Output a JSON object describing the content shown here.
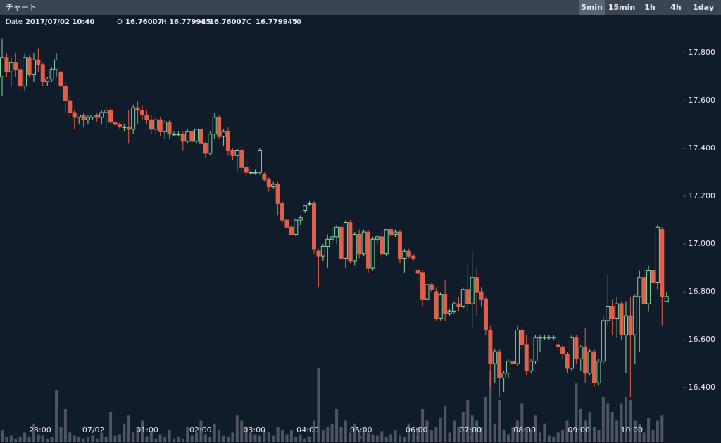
{
  "header": {
    "title": "チャート",
    "intervals": [
      "5min",
      "15min",
      "1h",
      "4h",
      "1day"
    ],
    "active": 0
  },
  "info": [
    {
      "label": "Date",
      "value": "2017/07/02 10:40"
    },
    {
      "label": "O",
      "value": "16.76007"
    },
    {
      "label": "H",
      "value": "16.779945"
    },
    {
      "label": "L",
      "value": "16.76007"
    },
    {
      "label": "C",
      "value": "16.779945"
    },
    {
      "label": "V",
      "value": "0"
    }
  ],
  "chart_data": {
    "type": "candlestick",
    "up_color": "#86d3a2",
    "down_color": "#e0604a",
    "volume_color": "#4e5560",
    "grid": false,
    "ylim": [
      16.174,
      17.956
    ],
    "yticks": [
      {
        "value": 16.4,
        "label": "16.400"
      },
      {
        "value": 16.6,
        "label": "16.600"
      },
      {
        "value": 16.8,
        "label": "16.800"
      },
      {
        "value": 17.0,
        "label": "17.000"
      },
      {
        "value": 17.2,
        "label": "17.200"
      },
      {
        "value": 17.4,
        "label": "17.400"
      },
      {
        "value": 17.6,
        "label": "17.600"
      },
      {
        "value": 17.8,
        "label": "17.800"
      }
    ],
    "xticks": [
      {
        "value": 8.4,
        "label": "23:00"
      },
      {
        "value": 20.2,
        "label": "07/02"
      },
      {
        "value": 32.1,
        "label": "01:00"
      },
      {
        "value": 43.9,
        "label": "02:00"
      },
      {
        "value": 55.8,
        "label": "03:00"
      },
      {
        "value": 67.6,
        "label": "04:00"
      },
      {
        "value": 79.4,
        "label": "05:00"
      },
      {
        "value": 91.7,
        "label": "06:00"
      },
      {
        "value": 103.6,
        "label": "07:00"
      },
      {
        "value": 115.6,
        "label": "08:00"
      },
      {
        "value": 127.6,
        "label": "09:00"
      },
      {
        "value": 139.3,
        "label": "10:00"
      }
    ],
    "candles": [
      [
        17.7,
        17.86,
        17.62,
        17.78,
        8
      ],
      [
        17.78,
        17.8,
        17.7,
        17.72,
        3
      ],
      [
        17.72,
        17.78,
        17.66,
        17.76,
        4
      ],
      [
        17.76,
        17.8,
        17.7,
        17.73,
        2
      ],
      [
        17.73,
        17.78,
        17.64,
        17.66,
        3
      ],
      [
        17.66,
        17.8,
        17.64,
        17.78,
        6
      ],
      [
        17.78,
        17.79,
        17.7,
        17.71,
        3
      ],
      [
        17.71,
        17.8,
        17.68,
        17.77,
        12
      ],
      [
        17.77,
        17.82,
        17.72,
        17.75,
        5
      ],
      [
        17.75,
        17.76,
        17.66,
        17.68,
        4
      ],
      [
        17.68,
        17.7,
        17.66,
        17.69,
        2
      ],
      [
        17.69,
        17.74,
        17.68,
        17.73,
        3
      ],
      [
        17.73,
        17.8,
        17.7,
        17.77,
        35
      ],
      [
        17.72,
        17.75,
        17.6,
        17.66,
        10
      ],
      [
        17.66,
        17.68,
        17.55,
        17.6,
        22
      ],
      [
        17.6,
        17.62,
        17.53,
        17.55,
        6
      ],
      [
        17.55,
        17.56,
        17.48,
        17.53,
        4
      ],
      [
        17.53,
        17.54,
        17.5,
        17.54,
        3
      ],
      [
        17.54,
        17.55,
        17.49,
        17.52,
        2
      ],
      [
        17.52,
        17.54,
        17.5,
        17.53,
        3
      ],
      [
        17.53,
        17.54,
        17.52,
        17.54,
        4
      ],
      [
        17.54,
        17.55,
        17.51,
        17.53,
        2
      ],
      [
        17.53,
        17.56,
        17.5,
        17.55,
        6
      ],
      [
        17.55,
        17.57,
        17.48,
        17.56,
        3
      ],
      [
        17.56,
        17.57,
        17.5,
        17.51,
        20
      ],
      [
        17.51,
        17.54,
        17.49,
        17.5,
        4
      ],
      [
        17.5,
        17.51,
        17.48,
        17.49,
        5
      ],
      [
        17.49,
        17.5,
        17.47,
        17.49,
        12
      ],
      [
        17.49,
        17.56,
        17.42,
        17.48,
        18
      ],
      [
        17.48,
        17.58,
        17.46,
        17.57,
        6
      ],
      [
        17.57,
        17.6,
        17.5,
        17.56,
        10
      ],
      [
        17.56,
        17.58,
        17.52,
        17.54,
        14
      ],
      [
        17.54,
        17.56,
        17.5,
        17.52,
        3
      ],
      [
        17.52,
        17.54,
        17.46,
        17.48,
        7
      ],
      [
        17.48,
        17.53,
        17.46,
        17.52,
        2
      ],
      [
        17.52,
        17.53,
        17.45,
        17.47,
        5
      ],
      [
        17.47,
        17.52,
        17.44,
        17.51,
        3
      ],
      [
        17.51,
        17.52,
        17.44,
        17.46,
        8
      ],
      [
        17.46,
        17.47,
        17.45,
        17.46,
        2
      ],
      [
        17.46,
        17.47,
        17.45,
        17.46,
        3
      ],
      [
        17.46,
        17.47,
        17.39,
        17.43,
        2
      ],
      [
        17.43,
        17.48,
        17.42,
        17.47,
        10
      ],
      [
        17.47,
        17.48,
        17.42,
        17.43,
        4
      ],
      [
        17.43,
        17.48,
        17.42,
        17.48,
        6
      ],
      [
        17.48,
        17.49,
        17.4,
        17.42,
        14
      ],
      [
        17.42,
        17.43,
        17.36,
        17.38,
        5
      ],
      [
        17.38,
        17.47,
        17.37,
        17.46,
        3
      ],
      [
        17.46,
        17.55,
        17.44,
        17.53,
        12
      ],
      [
        17.53,
        17.54,
        17.44,
        17.45,
        8
      ],
      [
        17.45,
        17.48,
        17.41,
        17.47,
        4
      ],
      [
        17.47,
        17.49,
        17.37,
        17.39,
        3
      ],
      [
        17.39,
        17.4,
        17.35,
        17.37,
        6
      ],
      [
        17.37,
        17.4,
        17.3,
        17.39,
        18
      ],
      [
        17.39,
        17.41,
        17.3,
        17.32,
        14
      ],
      [
        17.32,
        17.36,
        17.28,
        17.3,
        10
      ],
      [
        17.3,
        17.31,
        17.29,
        17.3,
        6
      ],
      [
        17.3,
        17.31,
        17.29,
        17.3,
        5
      ],
      [
        17.3,
        17.4,
        17.29,
        17.39,
        4
      ],
      [
        17.29,
        17.3,
        17.26,
        17.27,
        8
      ],
      [
        17.27,
        17.28,
        17.22,
        17.24,
        6
      ],
      [
        17.24,
        17.26,
        17.23,
        17.25,
        4
      ],
      [
        17.25,
        17.26,
        17.12,
        17.17,
        10
      ],
      [
        17.17,
        17.18,
        17.09,
        17.1,
        8
      ],
      [
        17.1,
        17.11,
        17.05,
        17.07,
        5
      ],
      [
        17.07,
        17.08,
        17.04,
        17.04,
        8
      ],
      [
        17.04,
        17.11,
        17.03,
        17.1,
        3
      ],
      [
        17.1,
        17.12,
        17.08,
        17.11,
        5
      ],
      [
        17.14,
        17.16,
        17.13,
        17.16,
        2
      ],
      [
        17.17,
        17.18,
        17.16,
        17.17,
        3
      ],
      [
        17.17,
        17.18,
        16.96,
        16.98,
        14
      ],
      [
        16.97,
        16.98,
        16.82,
        16.95,
        50
      ],
      [
        16.95,
        17.0,
        16.93,
        16.99,
        8
      ],
      [
        16.99,
        17.04,
        16.9,
        17.02,
        10
      ],
      [
        17.02,
        17.07,
        17.0,
        17.03,
        12
      ],
      [
        17.03,
        17.08,
        17.0,
        17.07,
        22
      ],
      [
        17.07,
        17.08,
        16.92,
        16.94,
        10
      ],
      [
        16.94,
        17.1,
        16.9,
        17.09,
        14
      ],
      [
        17.09,
        17.1,
        16.92,
        16.93,
        6
      ],
      [
        16.93,
        17.05,
        16.91,
        17.04,
        12
      ],
      [
        17.04,
        17.06,
        16.94,
        16.96,
        8
      ],
      [
        16.96,
        17.06,
        16.95,
        17.05,
        10
      ],
      [
        17.05,
        17.06,
        16.88,
        16.9,
        6
      ],
      [
        16.9,
        17.03,
        16.89,
        17.02,
        5
      ],
      [
        17.02,
        17.04,
        17.0,
        17.03,
        4
      ],
      [
        17.03,
        17.06,
        16.94,
        16.96,
        7
      ],
      [
        16.96,
        17.06,
        16.95,
        17.06,
        3
      ],
      [
        17.06,
        17.07,
        17.03,
        17.04,
        5
      ],
      [
        17.04,
        17.06,
        17.03,
        17.05,
        8
      ],
      [
        17.05,
        17.06,
        16.92,
        16.94,
        4
      ],
      [
        16.94,
        16.98,
        16.88,
        16.97,
        3
      ],
      [
        16.97,
        16.98,
        16.94,
        16.95,
        12
      ],
      [
        16.95,
        16.96,
        16.93,
        16.94,
        6
      ],
      [
        16.89,
        16.9,
        16.83,
        16.88,
        10
      ],
      [
        16.88,
        16.89,
        16.74,
        16.77,
        22
      ],
      [
        16.77,
        16.85,
        16.75,
        16.83,
        14
      ],
      [
        16.83,
        16.84,
        16.8,
        16.81,
        8
      ],
      [
        16.8,
        16.82,
        16.68,
        16.69,
        10
      ],
      [
        16.69,
        16.8,
        16.68,
        16.79,
        16
      ],
      [
        16.79,
        16.85,
        16.68,
        16.71,
        24
      ],
      [
        16.71,
        16.73,
        16.7,
        16.72,
        6
      ],
      [
        16.72,
        16.76,
        16.71,
        16.75,
        14
      ],
      [
        16.75,
        16.78,
        16.72,
        16.74,
        10
      ],
      [
        16.74,
        16.82,
        16.73,
        16.81,
        20
      ],
      [
        16.81,
        16.92,
        16.72,
        16.75,
        28
      ],
      [
        16.75,
        16.97,
        16.65,
        16.86,
        18
      ],
      [
        16.86,
        16.9,
        16.7,
        16.8,
        14
      ],
      [
        16.8,
        16.82,
        16.74,
        16.77,
        10
      ],
      [
        16.77,
        16.78,
        16.62,
        16.64,
        30
      ],
      [
        16.64,
        16.66,
        16.4,
        16.5,
        48
      ],
      [
        16.5,
        16.56,
        16.42,
        16.55,
        12
      ],
      [
        16.55,
        16.56,
        16.36,
        16.44,
        28
      ],
      [
        16.44,
        16.47,
        16.38,
        16.46,
        8
      ],
      [
        16.46,
        16.52,
        16.44,
        16.51,
        5
      ],
      [
        16.51,
        16.56,
        16.48,
        16.5,
        10
      ],
      [
        16.5,
        16.66,
        16.49,
        16.64,
        14
      ],
      [
        16.64,
        16.66,
        16.56,
        16.58,
        26
      ],
      [
        16.58,
        16.62,
        16.45,
        16.47,
        10
      ],
      [
        16.47,
        16.52,
        16.46,
        16.51,
        8
      ],
      [
        16.51,
        16.62,
        16.5,
        16.61,
        18
      ],
      [
        16.61,
        16.62,
        16.55,
        16.61,
        6
      ],
      [
        16.61,
        16.62,
        16.6,
        16.61,
        12
      ],
      [
        16.61,
        16.62,
        16.6,
        16.61,
        4
      ],
      [
        16.61,
        16.62,
        16.6,
        16.61,
        3
      ],
      [
        16.58,
        16.6,
        16.55,
        16.57,
        6
      ],
      [
        16.57,
        16.58,
        16.52,
        16.54,
        8
      ],
      [
        16.54,
        16.55,
        16.46,
        16.48,
        14
      ],
      [
        16.48,
        16.62,
        16.47,
        16.61,
        8
      ],
      [
        16.61,
        16.62,
        16.5,
        16.52,
        40
      ],
      [
        16.52,
        16.58,
        16.47,
        16.57,
        22
      ],
      [
        16.57,
        16.65,
        16.42,
        16.46,
        14
      ],
      [
        16.46,
        16.56,
        16.45,
        16.55,
        20
      ],
      [
        16.55,
        16.56,
        16.4,
        16.42,
        10
      ],
      [
        16.42,
        16.52,
        16.41,
        16.51,
        8
      ],
      [
        16.51,
        16.7,
        16.5,
        16.68,
        30
      ],
      [
        16.68,
        16.87,
        16.66,
        16.74,
        26
      ],
      [
        16.74,
        16.77,
        16.62,
        16.69,
        20
      ],
      [
        16.69,
        16.78,
        16.61,
        16.75,
        14
      ],
      [
        16.75,
        16.76,
        16.6,
        16.62,
        26
      ],
      [
        16.62,
        16.76,
        16.46,
        16.7,
        30
      ],
      [
        16.7,
        16.78,
        16.36,
        16.62,
        28
      ],
      [
        16.62,
        16.79,
        16.5,
        16.78,
        14
      ],
      [
        16.78,
        16.89,
        16.55,
        16.86,
        12
      ],
      [
        16.86,
        16.9,
        16.74,
        16.75,
        6
      ],
      [
        16.75,
        16.91,
        16.72,
        16.89,
        16
      ],
      [
        16.89,
        16.94,
        16.82,
        16.84,
        8
      ],
      [
        16.84,
        17.08,
        16.81,
        17.07,
        14
      ],
      [
        17.06,
        17.07,
        16.66,
        16.78,
        18
      ],
      [
        16.76,
        16.8,
        16.76,
        16.78,
        0
      ]
    ]
  }
}
